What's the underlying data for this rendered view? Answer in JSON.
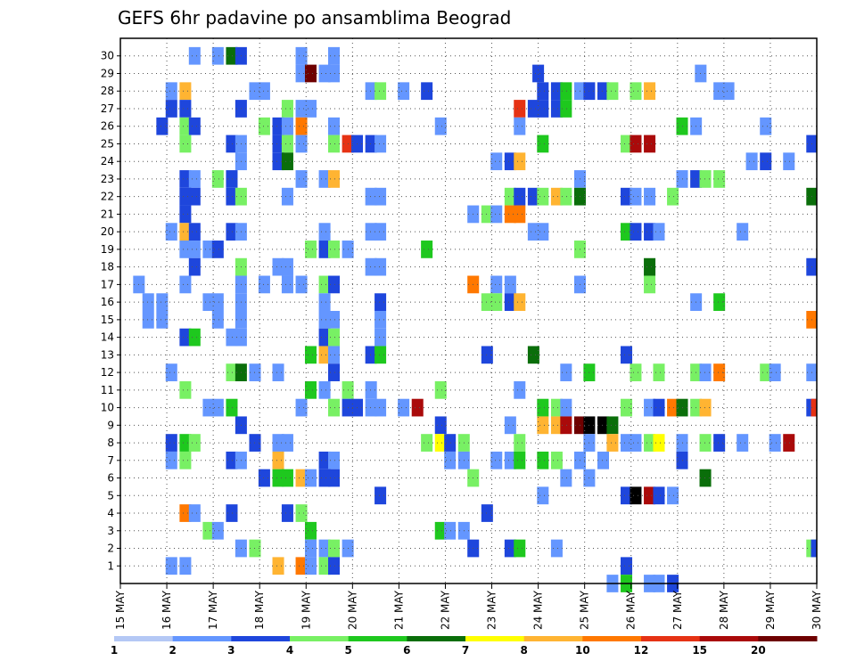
{
  "chart_data": {
    "type": "heatmap",
    "title": "GEFS 6hr padavine po ansamblima Beograd",
    "xlabel": "",
    "ylabel": "",
    "x_start": "15 MAY",
    "x_end": "30 MAY",
    "x_steps_per_day": 4,
    "x_ticks": [
      "15 MAY",
      "16 MAY",
      "17 MAY",
      "18 MAY",
      "19 MAY",
      "20 MAY",
      "21 MAY",
      "22 MAY",
      "23 MAY",
      "24 MAY",
      "25 MAY",
      "26 MAY",
      "27 MAY",
      "28 MAY",
      "29 MAY",
      "30 MAY"
    ],
    "y_ticks": [
      1,
      2,
      3,
      4,
      5,
      6,
      7,
      8,
      9,
      10,
      11,
      12,
      13,
      14,
      15,
      16,
      17,
      18,
      19,
      20,
      21,
      22,
      23,
      24,
      25,
      26,
      27,
      28,
      29,
      30
    ],
    "grid": true,
    "colorbar": {
      "position": "bottom",
      "labels": [
        "1",
        "2",
        "3",
        "4",
        "5",
        "6",
        "7",
        "8",
        "10",
        "12",
        "15",
        "20"
      ],
      "colors": [
        "#b4c8f5",
        "#6496ff",
        "#1e46dc",
        "#78f064",
        "#1ec81e",
        "#0a6e0a",
        "#ffff00",
        "#ffb432",
        "#ff7800",
        "#e63214",
        "#aa0a0a",
        "#6e0000"
      ]
    },
    "cells": [
      [
        30,
        16.6,
        1
      ],
      [
        30,
        17.1,
        1
      ],
      [
        30,
        17.4,
        5
      ],
      [
        30,
        17.6,
        2
      ],
      [
        30,
        18.9,
        1
      ],
      [
        30,
        19.6,
        1
      ],
      [
        29,
        18.9,
        1
      ],
      [
        29,
        19.1,
        11
      ],
      [
        29,
        19.4,
        1
      ],
      [
        29,
        19.6,
        1
      ],
      [
        29,
        24.0,
        2
      ],
      [
        29,
        27.5,
        1
      ],
      [
        28,
        16.1,
        1
      ],
      [
        28,
        16.4,
        7
      ],
      [
        28,
        17.9,
        1
      ],
      [
        28,
        18.1,
        1
      ],
      [
        28,
        20.4,
        1
      ],
      [
        28,
        20.6,
        3
      ],
      [
        28,
        21.1,
        1
      ],
      [
        28,
        21.6,
        2
      ],
      [
        28,
        24.1,
        2
      ],
      [
        28,
        24.4,
        2
      ],
      [
        28,
        24.6,
        4
      ],
      [
        28,
        24.9,
        1
      ],
      [
        28,
        25.1,
        2
      ],
      [
        28,
        25.4,
        2
      ],
      [
        28,
        25.6,
        3
      ],
      [
        28,
        26.1,
        3
      ],
      [
        28,
        26.4,
        7
      ],
      [
        28,
        27.9,
        1
      ],
      [
        28,
        28.1,
        1
      ],
      [
        27,
        16.1,
        2
      ],
      [
        27,
        16.4,
        2
      ],
      [
        27,
        17.6,
        2
      ],
      [
        27,
        18.6,
        3
      ],
      [
        27,
        18.9,
        1
      ],
      [
        27,
        19.1,
        1
      ],
      [
        27,
        23.6,
        9
      ],
      [
        27,
        23.9,
        2
      ],
      [
        27,
        24.1,
        2
      ],
      [
        27,
        24.4,
        2
      ],
      [
        27,
        24.6,
        4
      ],
      [
        26,
        15.9,
        2
      ],
      [
        26,
        16.4,
        3
      ],
      [
        26,
        16.6,
        2
      ],
      [
        26,
        18.1,
        3
      ],
      [
        26,
        18.4,
        2
      ],
      [
        26,
        18.6,
        1
      ],
      [
        26,
        18.9,
        8
      ],
      [
        26,
        19.6,
        1
      ],
      [
        26,
        21.9,
        1
      ],
      [
        26,
        23.6,
        1
      ],
      [
        26,
        27.1,
        4
      ],
      [
        26,
        27.4,
        1
      ],
      [
        26,
        28.9,
        1
      ],
      [
        25,
        16.4,
        3
      ],
      [
        25,
        17.4,
        2
      ],
      [
        25,
        17.6,
        1
      ],
      [
        25,
        18.4,
        2
      ],
      [
        25,
        18.6,
        3
      ],
      [
        25,
        18.9,
        1
      ],
      [
        25,
        19.6,
        3
      ],
      [
        25,
        19.9,
        9
      ],
      [
        25,
        20.1,
        2
      ],
      [
        25,
        20.4,
        2
      ],
      [
        25,
        20.6,
        1
      ],
      [
        25,
        24.1,
        4
      ],
      [
        25,
        25.9,
        3
      ],
      [
        25,
        26.1,
        10
      ],
      [
        25,
        26.4,
        10
      ],
      [
        25,
        29.9,
        2
      ],
      [
        24,
        17.6,
        1
      ],
      [
        24,
        18.4,
        2
      ],
      [
        24,
        18.6,
        5
      ],
      [
        24,
        23.1,
        1
      ],
      [
        24,
        23.4,
        2
      ],
      [
        24,
        23.6,
        7
      ],
      [
        24,
        28.6,
        1
      ],
      [
        24,
        28.9,
        2
      ],
      [
        24,
        29.4,
        1
      ],
      [
        23,
        16.4,
        2
      ],
      [
        23,
        16.6,
        1
      ],
      [
        23,
        17.1,
        3
      ],
      [
        23,
        17.4,
        2
      ],
      [
        23,
        18.9,
        1
      ],
      [
        23,
        19.4,
        1
      ],
      [
        23,
        19.6,
        7
      ],
      [
        23,
        24.9,
        1
      ],
      [
        23,
        27.1,
        1
      ],
      [
        23,
        27.4,
        2
      ],
      [
        23,
        27.6,
        3
      ],
      [
        23,
        27.9,
        3
      ],
      [
        22,
        16.4,
        2
      ],
      [
        22,
        16.6,
        2
      ],
      [
        22,
        17.4,
        2
      ],
      [
        22,
        17.6,
        3
      ],
      [
        22,
        18.6,
        1
      ],
      [
        22,
        20.4,
        1
      ],
      [
        22,
        20.6,
        1
      ],
      [
        22,
        23.4,
        3
      ],
      [
        22,
        23.6,
        2
      ],
      [
        22,
        23.9,
        2
      ],
      [
        22,
        24.1,
        3
      ],
      [
        22,
        24.4,
        7
      ],
      [
        22,
        24.6,
        3
      ],
      [
        22,
        24.9,
        5
      ],
      [
        22,
        25.9,
        2
      ],
      [
        22,
        26.1,
        1
      ],
      [
        22,
        26.4,
        1
      ],
      [
        22,
        26.9,
        3
      ],
      [
        22,
        29.9,
        5
      ],
      [
        21,
        16.4,
        2
      ],
      [
        21,
        22.6,
        1
      ],
      [
        21,
        22.9,
        3
      ],
      [
        21,
        23.1,
        1
      ],
      [
        21,
        23.4,
        8
      ],
      [
        21,
        23.6,
        8
      ],
      [
        20,
        16.1,
        1
      ],
      [
        20,
        16.4,
        7
      ],
      [
        20,
        16.6,
        2
      ],
      [
        20,
        17.4,
        2
      ],
      [
        20,
        17.6,
        1
      ],
      [
        20,
        19.4,
        1
      ],
      [
        20,
        20.4,
        1
      ],
      [
        20,
        20.6,
        1
      ],
      [
        20,
        23.9,
        1
      ],
      [
        20,
        24.1,
        1
      ],
      [
        20,
        25.9,
        4
      ],
      [
        20,
        26.1,
        2
      ],
      [
        20,
        26.4,
        2
      ],
      [
        20,
        26.6,
        1
      ],
      [
        20,
        28.4,
        1
      ],
      [
        19,
        16.4,
        1
      ],
      [
        19,
        16.6,
        1
      ],
      [
        19,
        16.9,
        1
      ],
      [
        19,
        17.1,
        2
      ],
      [
        19,
        19.1,
        3
      ],
      [
        19,
        19.4,
        2
      ],
      [
        19,
        19.6,
        3
      ],
      [
        19,
        19.9,
        1
      ],
      [
        19,
        21.6,
        4
      ],
      [
        19,
        24.9,
        3
      ],
      [
        18,
        16.6,
        2
      ],
      [
        18,
        17.6,
        3
      ],
      [
        18,
        18.4,
        1
      ],
      [
        18,
        18.6,
        1
      ],
      [
        18,
        20.4,
        1
      ],
      [
        18,
        20.6,
        1
      ],
      [
        18,
        26.4,
        5
      ],
      [
        18,
        29.9,
        2
      ],
      [
        17,
        15.4,
        1
      ],
      [
        17,
        16.4,
        1
      ],
      [
        17,
        17.6,
        1
      ],
      [
        17,
        18.1,
        1
      ],
      [
        17,
        18.6,
        1
      ],
      [
        17,
        18.9,
        1
      ],
      [
        17,
        19.4,
        3
      ],
      [
        17,
        19.6,
        2
      ],
      [
        17,
        22.6,
        8
      ],
      [
        17,
        23.1,
        1
      ],
      [
        17,
        23.4,
        1
      ],
      [
        17,
        24.9,
        1
      ],
      [
        17,
        26.4,
        3
      ],
      [
        16,
        15.6,
        1
      ],
      [
        16,
        15.9,
        1
      ],
      [
        16,
        16.9,
        1
      ],
      [
        16,
        17.1,
        1
      ],
      [
        16,
        17.6,
        1
      ],
      [
        16,
        19.4,
        1
      ],
      [
        16,
        20.6,
        2
      ],
      [
        16,
        22.9,
        3
      ],
      [
        16,
        23.1,
        3
      ],
      [
        16,
        23.4,
        2
      ],
      [
        16,
        23.6,
        7
      ],
      [
        16,
        27.4,
        1
      ],
      [
        16,
        27.9,
        4
      ],
      [
        15,
        15.6,
        1
      ],
      [
        15,
        15.9,
        1
      ],
      [
        15,
        17.1,
        1
      ],
      [
        15,
        17.6,
        1
      ],
      [
        15,
        19.4,
        1
      ],
      [
        15,
        19.6,
        1
      ],
      [
        15,
        20.6,
        1
      ],
      [
        15,
        29.9,
        8
      ],
      [
        14,
        16.4,
        2
      ],
      [
        14,
        16.6,
        4
      ],
      [
        14,
        17.4,
        1
      ],
      [
        14,
        17.6,
        1
      ],
      [
        14,
        19.4,
        2
      ],
      [
        14,
        19.6,
        3
      ],
      [
        14,
        20.6,
        1
      ],
      [
        13,
        19.1,
        4
      ],
      [
        13,
        19.4,
        7
      ],
      [
        13,
        19.6,
        1
      ],
      [
        13,
        20.4,
        2
      ],
      [
        13,
        20.6,
        4
      ],
      [
        13,
        22.9,
        2
      ],
      [
        13,
        23.9,
        5
      ],
      [
        13,
        25.9,
        2
      ],
      [
        12,
        16.1,
        1
      ],
      [
        12,
        17.4,
        3
      ],
      [
        12,
        17.6,
        5
      ],
      [
        12,
        17.9,
        1
      ],
      [
        12,
        18.4,
        1
      ],
      [
        12,
        19.6,
        2
      ],
      [
        12,
        24.6,
        1
      ],
      [
        12,
        25.1,
        4
      ],
      [
        12,
        26.1,
        3
      ],
      [
        12,
        26.6,
        3
      ],
      [
        12,
        27.4,
        3
      ],
      [
        12,
        27.6,
        1
      ],
      [
        12,
        27.9,
        8
      ],
      [
        12,
        28.9,
        3
      ],
      [
        12,
        29.1,
        1
      ],
      [
        12,
        29.9,
        1
      ],
      [
        11,
        16.4,
        3
      ],
      [
        11,
        19.1,
        4
      ],
      [
        11,
        19.4,
        1
      ],
      [
        11,
        19.9,
        3
      ],
      [
        11,
        20.4,
        1
      ],
      [
        11,
        21.9,
        3
      ],
      [
        11,
        23.6,
        1
      ],
      [
        10,
        16.9,
        1
      ],
      [
        10,
        17.1,
        1
      ],
      [
        10,
        17.4,
        4
      ],
      [
        10,
        18.9,
        1
      ],
      [
        10,
        19.6,
        3
      ],
      [
        10,
        19.9,
        2
      ],
      [
        10,
        20.1,
        2
      ],
      [
        10,
        20.4,
        1
      ],
      [
        10,
        20.6,
        1
      ],
      [
        10,
        21.1,
        1
      ],
      [
        10,
        21.4,
        10
      ],
      [
        10,
        24.1,
        4
      ],
      [
        10,
        24.4,
        3
      ],
      [
        10,
        24.6,
        1
      ],
      [
        10,
        25.9,
        3
      ],
      [
        10,
        26.4,
        1
      ],
      [
        10,
        26.6,
        2
      ],
      [
        10,
        26.9,
        8
      ],
      [
        10,
        27.1,
        5
      ],
      [
        10,
        27.4,
        3
      ],
      [
        10,
        27.6,
        7
      ],
      [
        10,
        29.9,
        2
      ],
      [
        10,
        30.0,
        9
      ],
      [
        9,
        17.6,
        2
      ],
      [
        9,
        21.9,
        2
      ],
      [
        9,
        23.4,
        1
      ],
      [
        9,
        24.1,
        7
      ],
      [
        9,
        24.4,
        7
      ],
      [
        9,
        24.6,
        10
      ],
      [
        9,
        24.9,
        11
      ],
      [
        9,
        25.1,
        12
      ],
      [
        9,
        25.4,
        12
      ],
      [
        9,
        25.6,
        5
      ],
      [
        8,
        16.1,
        2
      ],
      [
        8,
        16.4,
        4
      ],
      [
        8,
        16.6,
        3
      ],
      [
        8,
        17.9,
        2
      ],
      [
        8,
        18.4,
        1
      ],
      [
        8,
        18.6,
        1
      ],
      [
        8,
        21.6,
        3
      ],
      [
        8,
        21.9,
        6
      ],
      [
        8,
        22.1,
        2
      ],
      [
        8,
        22.4,
        3
      ],
      [
        8,
        23.6,
        3
      ],
      [
        8,
        25.1,
        1
      ],
      [
        8,
        25.6,
        7
      ],
      [
        8,
        25.9,
        1
      ],
      [
        8,
        26.1,
        1
      ],
      [
        8,
        26.4,
        3
      ],
      [
        8,
        26.6,
        6
      ],
      [
        8,
        27.1,
        1
      ],
      [
        8,
        27.6,
        3
      ],
      [
        8,
        27.9,
        2
      ],
      [
        8,
        28.4,
        1
      ],
      [
        8,
        29.1,
        1
      ],
      [
        8,
        29.4,
        10
      ],
      [
        7,
        16.1,
        1
      ],
      [
        7,
        16.4,
        3
      ],
      [
        7,
        17.4,
        2
      ],
      [
        7,
        17.6,
        1
      ],
      [
        7,
        18.4,
        7
      ],
      [
        7,
        19.4,
        2
      ],
      [
        7,
        19.6,
        1
      ],
      [
        7,
        22.1,
        1
      ],
      [
        7,
        22.4,
        1
      ],
      [
        7,
        23.1,
        1
      ],
      [
        7,
        23.4,
        1
      ],
      [
        7,
        23.6,
        4
      ],
      [
        7,
        24.1,
        4
      ],
      [
        7,
        24.4,
        3
      ],
      [
        7,
        24.9,
        1
      ],
      [
        7,
        25.4,
        1
      ],
      [
        7,
        27.1,
        2
      ],
      [
        6,
        18.1,
        2
      ],
      [
        6,
        18.4,
        4
      ],
      [
        6,
        18.6,
        4
      ],
      [
        6,
        18.9,
        7
      ],
      [
        6,
        19.1,
        1
      ],
      [
        6,
        19.4,
        2
      ],
      [
        6,
        19.6,
        2
      ],
      [
        6,
        22.6,
        3
      ],
      [
        6,
        24.6,
        1
      ],
      [
        6,
        25.1,
        1
      ],
      [
        6,
        27.6,
        5
      ],
      [
        5,
        20.6,
        2
      ],
      [
        5,
        24.1,
        1
      ],
      [
        5,
        25.9,
        2
      ],
      [
        5,
        26.1,
        12
      ],
      [
        5,
        26.4,
        10
      ],
      [
        5,
        26.6,
        2
      ],
      [
        5,
        26.9,
        1
      ],
      [
        4,
        16.4,
        8
      ],
      [
        4,
        16.6,
        1
      ],
      [
        4,
        17.4,
        2
      ],
      [
        4,
        18.6,
        2
      ],
      [
        4,
        18.9,
        3
      ],
      [
        4,
        22.9,
        2
      ],
      [
        3,
        16.9,
        3
      ],
      [
        3,
        17.1,
        1
      ],
      [
        3,
        19.1,
        4
      ],
      [
        3,
        21.9,
        4
      ],
      [
        3,
        22.1,
        1
      ],
      [
        3,
        22.4,
        1
      ],
      [
        2,
        17.6,
        1
      ],
      [
        2,
        17.9,
        3
      ],
      [
        2,
        19.1,
        1
      ],
      [
        2,
        19.4,
        1
      ],
      [
        2,
        19.6,
        3
      ],
      [
        2,
        19.9,
        1
      ],
      [
        2,
        22.6,
        2
      ],
      [
        2,
        23.4,
        2
      ],
      [
        2,
        23.6,
        4
      ],
      [
        2,
        24.4,
        1
      ],
      [
        2,
        29.9,
        3
      ],
      [
        2,
        30.0,
        2
      ],
      [
        1,
        16.1,
        1
      ],
      [
        1,
        16.4,
        1
      ],
      [
        1,
        18.4,
        7
      ],
      [
        1,
        18.9,
        8
      ],
      [
        1,
        19.1,
        1
      ],
      [
        1,
        19.4,
        3
      ],
      [
        1,
        19.6,
        2
      ],
      [
        1,
        25.9,
        2
      ],
      [
        0,
        25.6,
        1
      ],
      [
        0,
        25.9,
        4
      ],
      [
        0,
        26.4,
        1
      ],
      [
        0,
        26.6,
        1
      ],
      [
        0,
        26.9,
        2
      ]
    ]
  }
}
